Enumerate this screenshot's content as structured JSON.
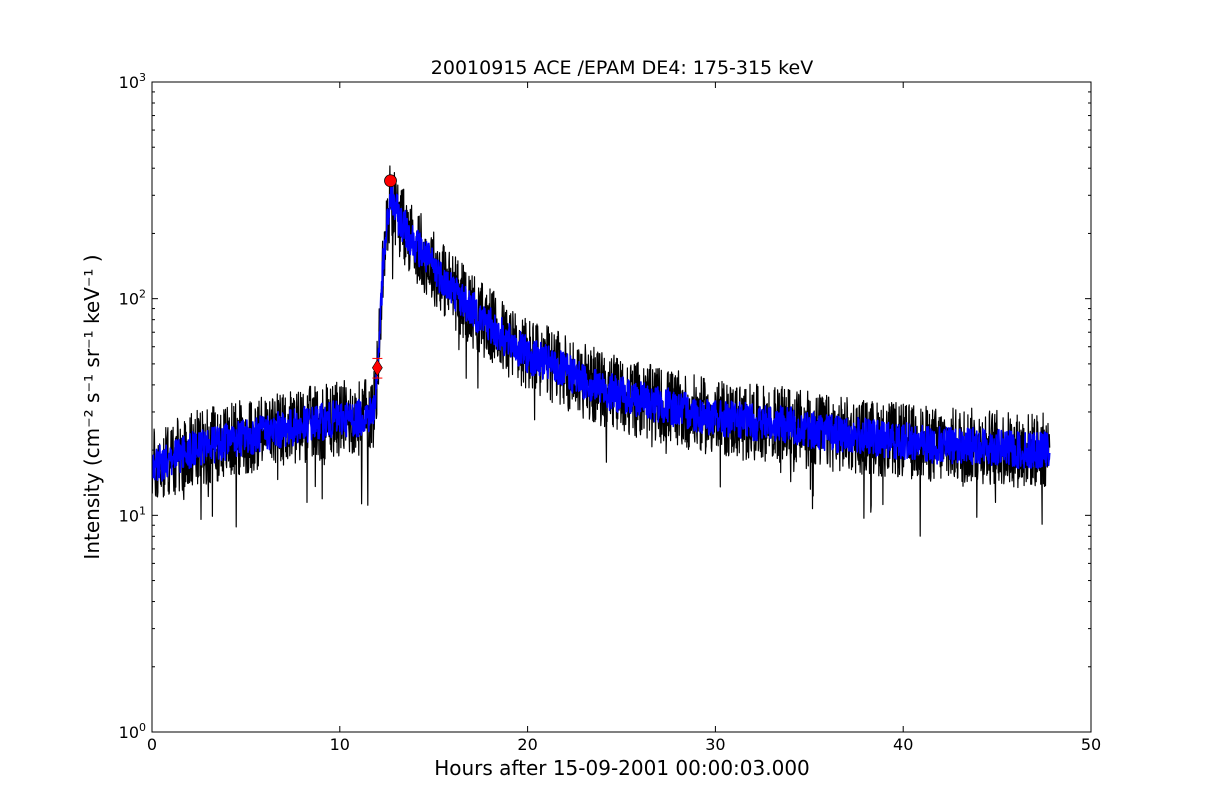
{
  "chart_data": {
    "type": "line",
    "title": "20010915 ACE /EPAM DE4: 175-315 keV",
    "xlabel": "Hours after 15-09-2001 00:00:03.000",
    "ylabel": "Intensity (cm⁻² s⁻¹ sr⁻¹ keV⁻¹ )",
    "xlim": [
      0,
      50
    ],
    "ylim": [
      1,
      1000
    ],
    "yscale": "log",
    "grid": false,
    "x_ticks": [
      "0",
      "10",
      "20",
      "30",
      "40",
      "50"
    ],
    "y_ticks": [
      {
        "value": 1,
        "base": "10",
        "exp": "0"
      },
      {
        "value": 10,
        "base": "10",
        "exp": "1"
      },
      {
        "value": 100,
        "base": "10",
        "exp": "2"
      },
      {
        "value": 1000,
        "base": "10",
        "exp": "3"
      }
    ],
    "series": [
      {
        "role": "raw",
        "color": "#000000",
        "x": [
          0,
          1,
          2,
          3,
          4,
          5,
          6,
          7,
          8,
          9,
          10,
          11,
          11.8,
          12.0,
          12.3,
          12.7,
          13.2,
          14,
          15,
          16,
          17,
          18,
          19,
          20,
          22,
          24,
          26,
          28,
          30,
          32,
          34,
          36,
          38,
          40,
          42,
          44,
          46,
          47.8
        ],
        "y": [
          17,
          18,
          20,
          21,
          22,
          23,
          24,
          25,
          26,
          27,
          28,
          28,
          30,
          45,
          140,
          300,
          230,
          180,
          140,
          110,
          90,
          75,
          63,
          55,
          46,
          38,
          34,
          31,
          28,
          27,
          26,
          24,
          23,
          22,
          21,
          21,
          20,
          20
        ],
        "spread": 1.5
      },
      {
        "role": "smoothed",
        "color": "#0000ff",
        "x": [
          0,
          1,
          2,
          3,
          4,
          5,
          6,
          7,
          8,
          9,
          10,
          11,
          11.8,
          12.0,
          12.3,
          12.7,
          13.2,
          14,
          15,
          16,
          17,
          18,
          19,
          20,
          22,
          24,
          26,
          28,
          30,
          32,
          34,
          36,
          38,
          40,
          42,
          44,
          46,
          47.8
        ],
        "y": [
          17,
          18,
          20,
          21,
          22,
          23,
          24,
          25,
          26,
          27,
          28,
          28,
          30,
          45,
          140,
          300,
          230,
          180,
          140,
          110,
          90,
          75,
          63,
          55,
          46,
          38,
          34,
          31,
          28,
          27,
          26,
          24,
          23,
          22,
          21,
          21,
          20,
          20
        ],
        "spread": 1.22
      }
    ],
    "markers": [
      {
        "name": "onset-marker",
        "shape": "diamond",
        "x": 12.0,
        "y": 48,
        "color": "#ff0000",
        "error_low": 43,
        "error_high": 53
      },
      {
        "name": "peak-marker",
        "shape": "circle",
        "x": 12.7,
        "y": 350,
        "color": "#ff0000"
      }
    ]
  }
}
